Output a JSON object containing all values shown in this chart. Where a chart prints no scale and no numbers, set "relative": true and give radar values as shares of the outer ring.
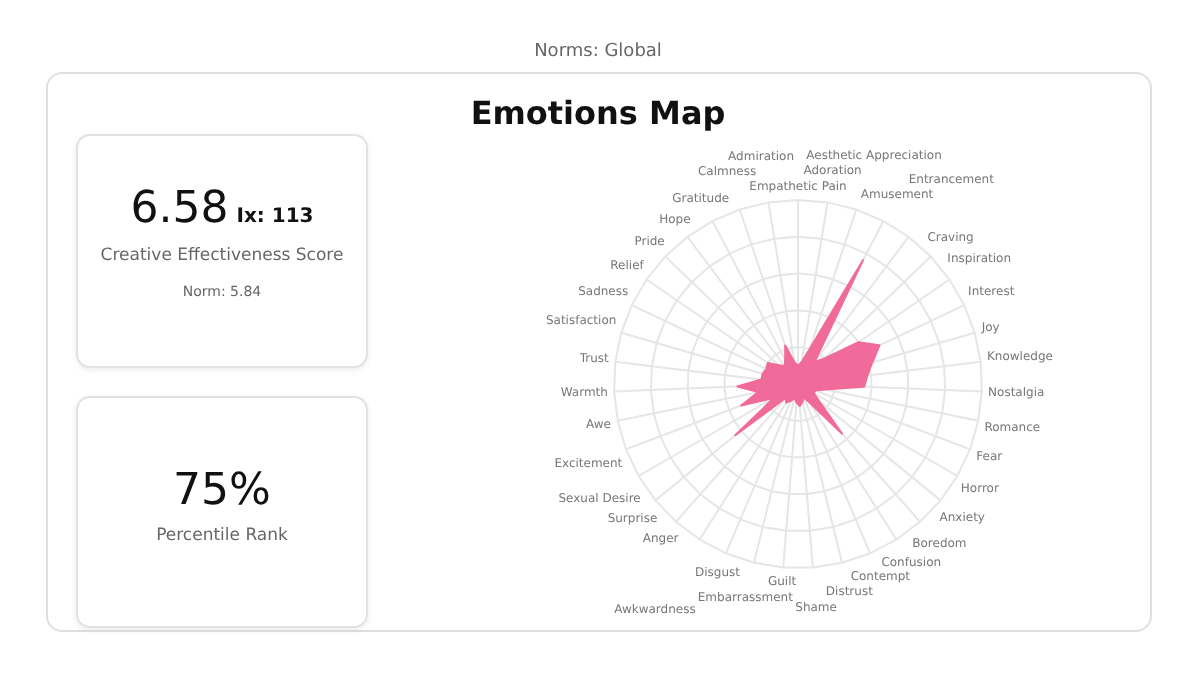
{
  "chart_data": [
    {
      "type": "radar",
      "title": "Emotions Map",
      "annotations": [
        "Norms: Global"
      ],
      "relative": true,
      "grid": true,
      "legend": false,
      "marker": "none",
      "categories": [
        "Empathetic Pain",
        "Adoration",
        "Aesthetic Appreciation",
        "Amusement",
        "Entrancement",
        "Craving",
        "Inspiration",
        "Interest",
        "Joy",
        "Knowledge",
        "Nostalgia",
        "Romance",
        "Fear",
        "Horror",
        "Anxiety",
        "Boredom",
        "Confusion",
        "Contempt",
        "Distrust",
        "Shame",
        "Guilt",
        "Embarrassment",
        "Disgust",
        "Awkwardness",
        "Anger",
        "Surprise",
        "Sexual Desire",
        "Excitement",
        "Awe",
        "Warmth",
        "Trust",
        "Satisfaction",
        "Sadness",
        "Relief",
        "Pride",
        "Hope",
        "Gratitude",
        "Calmness",
        "Admiration"
      ],
      "series": [
        {
          "color": "#f06a9a",
          "values": [
            0.1,
            0.12,
            0.2,
            0.76,
            0.15,
            0.2,
            0.4,
            0.49,
            0.42,
            0.38,
            0.36,
            0.15,
            0.1,
            0.1,
            0.15,
            0.36,
            0.12,
            0.08,
            0.1,
            0.12,
            0.1,
            0.08,
            0.1,
            0.12,
            0.1,
            0.44,
            0.15,
            0.33,
            0.22,
            0.33,
            0.2,
            0.2,
            0.19,
            0.2,
            0.15,
            0.12,
            0.15,
            0.22,
            0.12
          ]
        }
      ]
    },
    {
      "type": "other",
      "annotations": [
        "6.58",
        "Ix: 113",
        "Creative Effectiveness Score",
        "Norm: 5.84"
      ]
    },
    {
      "type": "other",
      "annotations": [
        "75%",
        "Percentile Rank"
      ]
    }
  ]
}
